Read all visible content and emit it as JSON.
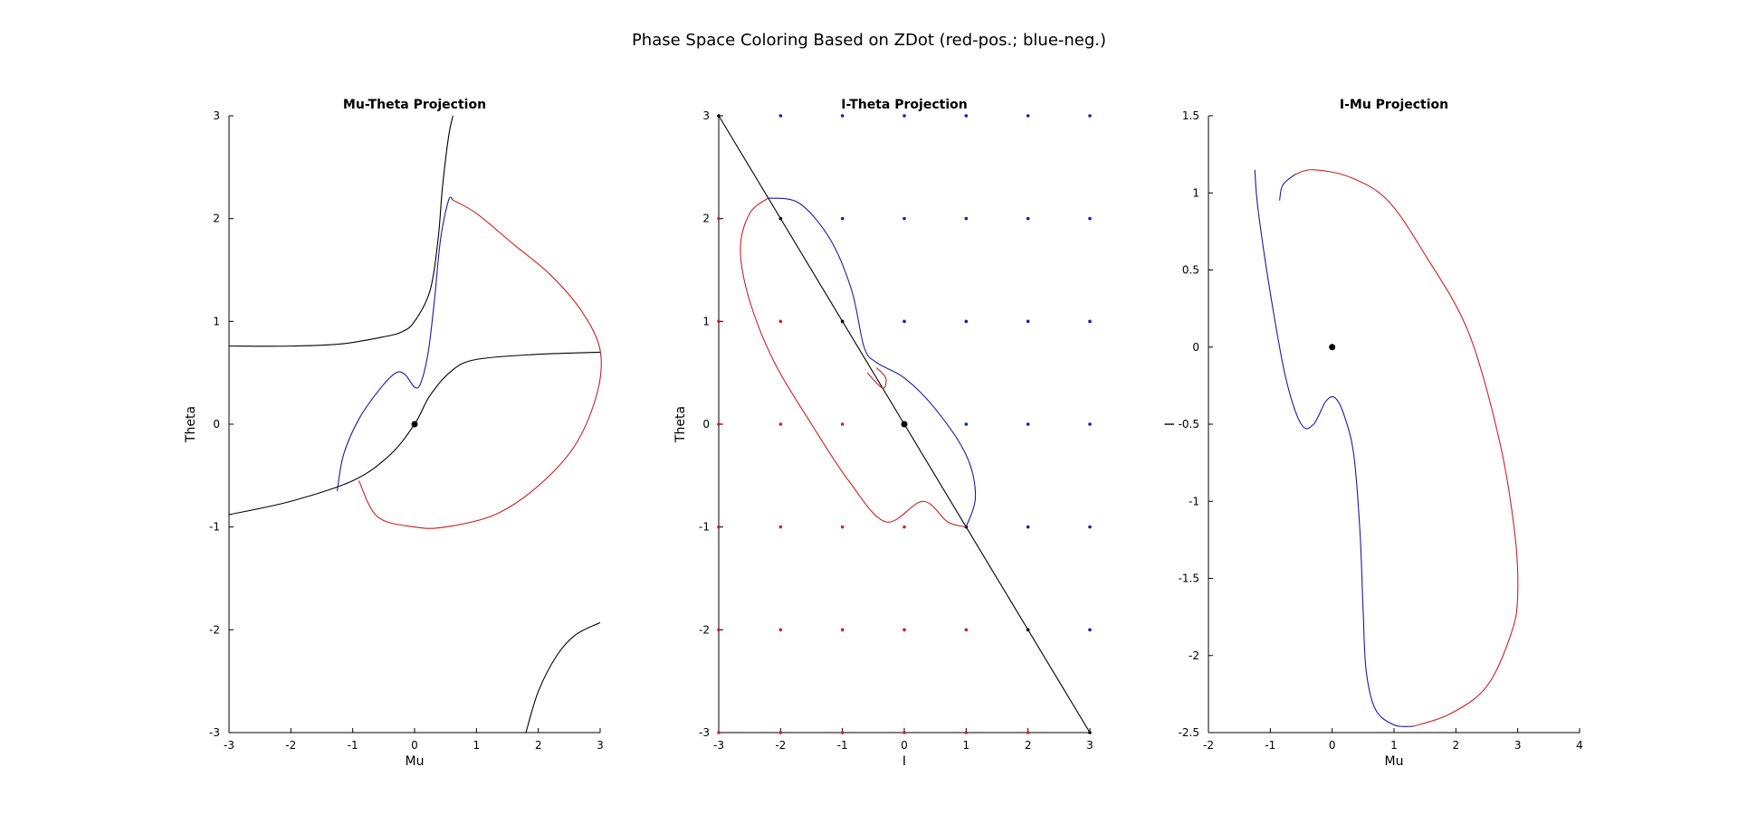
{
  "figure": {
    "suptitle": "Phase Space Coloring Based on ZDot (red-pos.; blue-neg.)"
  },
  "colors": {
    "positive": "#cc2222",
    "negative": "#1a1aaa",
    "neutral": "#000000"
  },
  "chart_data": [
    {
      "type": "line",
      "title": "Mu-Theta Projection",
      "xlabel": "Mu",
      "ylabel": "Theta",
      "xlim": [
        -3,
        3
      ],
      "ylim": [
        -3,
        3
      ],
      "xticks": [
        "-3",
        "-2",
        "-1",
        "0",
        "1",
        "2",
        "3"
      ],
      "yticks": [
        "-3",
        "-2",
        "-1",
        "0",
        "1",
        "2",
        "3"
      ],
      "grid": false,
      "series": [
        {
          "color": "black",
          "points": [
            [
              -3,
              0.76
            ],
            [
              -2,
              0.76
            ],
            [
              -1.2,
              0.78
            ],
            [
              -0.5,
              0.85
            ],
            [
              -0.2,
              0.9
            ],
            [
              0,
              1.0
            ],
            [
              0.25,
              1.3
            ],
            [
              0.38,
              1.8
            ],
            [
              0.45,
              2.3
            ],
            [
              0.55,
              2.8
            ],
            [
              0.62,
              3.0
            ]
          ]
        },
        {
          "color": "black",
          "points": [
            [
              -3,
              -0.88
            ],
            [
              -2,
              -0.75
            ],
            [
              -1,
              -0.55
            ],
            [
              -0.4,
              -0.3
            ],
            [
              0,
              0
            ],
            [
              0.25,
              0.28
            ],
            [
              0.6,
              0.52
            ],
            [
              1,
              0.63
            ],
            [
              2,
              0.68
            ],
            [
              3,
              0.7
            ]
          ]
        },
        {
          "color": "black",
          "points": [
            [
              1.8,
              -3.0
            ],
            [
              2.0,
              -2.6
            ],
            [
              2.3,
              -2.25
            ],
            [
              2.6,
              -2.05
            ],
            [
              3.0,
              -1.93
            ]
          ]
        },
        {
          "color": "red",
          "points": [
            [
              0.62,
              2.18
            ],
            [
              1.0,
              2.05
            ],
            [
              1.6,
              1.75
            ],
            [
              2.2,
              1.45
            ],
            [
              2.7,
              1.1
            ],
            [
              3.0,
              0.72
            ],
            [
              2.95,
              0.3
            ],
            [
              2.6,
              -0.2
            ],
            [
              2.0,
              -0.6
            ],
            [
              1.3,
              -0.88
            ],
            [
              0.5,
              -1.0
            ],
            [
              0.0,
              -1.0
            ],
            [
              -0.6,
              -0.9
            ],
            [
              -0.9,
              -0.55
            ]
          ]
        },
        {
          "color": "blue",
          "points": [
            [
              -1.25,
              -0.65
            ],
            [
              -1.15,
              -0.3
            ],
            [
              -0.9,
              0.05
            ],
            [
              -0.55,
              0.35
            ],
            [
              -0.3,
              0.5
            ],
            [
              -0.15,
              0.48
            ],
            [
              0.0,
              0.36
            ],
            [
              0.1,
              0.4
            ],
            [
              0.22,
              0.7
            ],
            [
              0.32,
              1.2
            ],
            [
              0.42,
              1.8
            ],
            [
              0.55,
              2.18
            ],
            [
              0.62,
              2.18
            ]
          ]
        }
      ],
      "markers": [
        [
          0,
          0
        ]
      ]
    },
    {
      "type": "line",
      "title": "I-Theta Projection",
      "xlabel": "I",
      "ylabel": "Theta",
      "xlim": [
        -3,
        3
      ],
      "ylim": [
        -3,
        3
      ],
      "xticks": [
        "-3",
        "-2",
        "-1",
        "0",
        "1",
        "2",
        "3"
      ],
      "yticks": [
        "-3",
        "-2",
        "-1",
        "0",
        "1",
        "2",
        "3"
      ],
      "grid": false,
      "series": [
        {
          "color": "black",
          "points": [
            [
              -3,
              3
            ],
            [
              3,
              -3
            ]
          ]
        },
        {
          "color": "red",
          "points": [
            [
              -2.2,
              2.2
            ],
            [
              -2.5,
              2.05
            ],
            [
              -2.65,
              1.7
            ],
            [
              -2.5,
              1.2
            ],
            [
              -2.1,
              0.6
            ],
            [
              -1.5,
              0.0
            ],
            [
              -0.9,
              -0.55
            ],
            [
              -0.3,
              -0.95
            ],
            [
              0.3,
              -0.75
            ],
            [
              0.7,
              -0.95
            ],
            [
              1.0,
              -1.0
            ]
          ]
        },
        {
          "color": "blue",
          "points": [
            [
              1.0,
              -1.0
            ],
            [
              1.15,
              -0.7
            ],
            [
              1.0,
              -0.3
            ],
            [
              0.5,
              0.15
            ],
            [
              0.0,
              0.45
            ],
            [
              -0.45,
              0.6
            ],
            [
              -0.65,
              0.75
            ],
            [
              -0.85,
              1.3
            ],
            [
              -1.2,
              1.8
            ],
            [
              -1.7,
              2.15
            ],
            [
              -2.2,
              2.2
            ]
          ]
        },
        {
          "color": "red",
          "points": [
            [
              -0.6,
              0.5
            ],
            [
              -0.35,
              0.35
            ],
            [
              -0.3,
              0.45
            ],
            [
              -0.45,
              0.55
            ]
          ]
        }
      ],
      "markers": [
        [
          0,
          0
        ]
      ],
      "dot_colors": [
        [
          "black",
          "blue",
          "blue",
          "blue",
          "blue",
          "blue",
          "blue"
        ],
        [
          "red",
          "black",
          "blue",
          "blue",
          "blue",
          "blue",
          "blue"
        ],
        [
          "red",
          "red",
          "black",
          "blue",
          "blue",
          "blue",
          "blue"
        ],
        [
          "red",
          "red",
          "red",
          "black",
          "blue",
          "blue",
          "blue"
        ],
        [
          "red",
          "red",
          "red",
          "red",
          "black",
          "blue",
          "blue"
        ],
        [
          "red",
          "red",
          "red",
          "red",
          "red",
          "black",
          "blue"
        ],
        [
          "red",
          "red",
          "red",
          "red",
          "red",
          "red",
          "black"
        ]
      ]
    },
    {
      "type": "line",
      "title": "I-Mu Projection",
      "xlabel": "Mu",
      "ylabel": "I",
      "xlim": [
        -2,
        4
      ],
      "ylim": [
        -2.5,
        1.5
      ],
      "xticks": [
        "-2",
        "-1",
        "0",
        "1",
        "2",
        "3",
        "4"
      ],
      "yticks": [
        "-2.5",
        "-2",
        "-1.5",
        "-1",
        "-0.5",
        "0",
        "0.5",
        "1",
        "1.5"
      ],
      "grid": false,
      "series": [
        {
          "color": "blue",
          "points": [
            [
              -1.25,
              1.15
            ],
            [
              -1.2,
              0.9
            ],
            [
              -1.0,
              0.35
            ],
            [
              -0.75,
              -0.2
            ],
            [
              -0.5,
              -0.5
            ],
            [
              -0.3,
              -0.5
            ],
            [
              -0.1,
              -0.35
            ],
            [
              0.05,
              -0.33
            ],
            [
              0.2,
              -0.45
            ],
            [
              0.35,
              -0.7
            ],
            [
              0.45,
              -1.2
            ],
            [
              0.5,
              -1.7
            ],
            [
              0.55,
              -2.1
            ],
            [
              0.7,
              -2.35
            ],
            [
              1.0,
              -2.45
            ],
            [
              1.3,
              -2.46
            ]
          ]
        },
        {
          "color": "red",
          "points": [
            [
              1.3,
              -2.46
            ],
            [
              1.9,
              -2.38
            ],
            [
              2.5,
              -2.2
            ],
            [
              2.9,
              -1.85
            ],
            [
              3.0,
              -1.6
            ],
            [
              2.95,
              -1.2
            ],
            [
              2.7,
              -0.6
            ],
            [
              2.2,
              0.1
            ],
            [
              1.5,
              0.6
            ],
            [
              0.9,
              0.95
            ],
            [
              0.3,
              1.1
            ],
            [
              -0.3,
              1.15
            ],
            [
              -0.6,
              1.12
            ]
          ]
        },
        {
          "color": "blue",
          "points": [
            [
              -0.6,
              1.12
            ],
            [
              -0.8,
              1.05
            ],
            [
              -0.85,
              0.95
            ]
          ]
        }
      ],
      "markers": [
        [
          0,
          0
        ]
      ]
    }
  ]
}
